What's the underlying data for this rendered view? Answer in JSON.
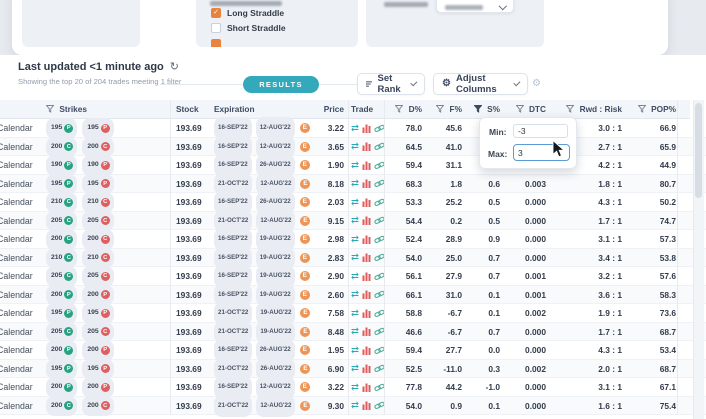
{
  "strategy_panel": {
    "items": [
      {
        "label": "Long Straddle",
        "checked": true
      },
      {
        "label": "Short Straddle",
        "checked": false
      }
    ]
  },
  "toolbar": {
    "last_updated": "Last updated <1 minute ago",
    "subtitle": "Showing the top 20 of 204 trades meeting 1 filter",
    "results": "RESULTS",
    "set_rank": "Set Rank",
    "adjust_columns": "Adjust Columns"
  },
  "filter_popup": {
    "min_label": "Min:",
    "min_value": "-3",
    "max_label": "Max:",
    "max_value": "3"
  },
  "table": {
    "headers": {
      "strikes": "Strikes",
      "stock": "Stock",
      "expiration": "Expiration",
      "price": "Price",
      "trade": "Trade",
      "d": "D%",
      "f": "F%",
      "s": "S%",
      "dtc": "DTC",
      "rr": "Rwd : Risk",
      "pop": "POP%"
    },
    "rows": [
      {
        "strategy": "Calendar",
        "legs": [
          {
            "strike": "195",
            "type": "P",
            "side": "long"
          },
          {
            "strike": "195",
            "type": "P",
            "side": "short"
          }
        ],
        "stock": "193.69",
        "exp_far": "16-SEP'22",
        "exp_near": "12-AUG'22",
        "badge": "E",
        "price": "3.22",
        "d_pct": "78.0",
        "f_pct": "45.6",
        "s_pct": null,
        "dtc": null,
        "rwd_risk": "3.0 : 1",
        "pop_pct": "66.9"
      },
      {
        "strategy": "Calendar",
        "legs": [
          {
            "strike": "200",
            "type": "C",
            "side": "long"
          },
          {
            "strike": "200",
            "type": "C",
            "side": "short"
          }
        ],
        "stock": "193.69",
        "exp_far": "16-SEP'22",
        "exp_near": "12-AUG'22",
        "badge": "E",
        "price": "3.65",
        "d_pct": "64.5",
        "f_pct": "41.0",
        "s_pct": null,
        "dtc": null,
        "rwd_risk": "2.7 : 1",
        "pop_pct": "65.9"
      },
      {
        "strategy": "Calendar",
        "legs": [
          {
            "strike": "190",
            "type": "P",
            "side": "long"
          },
          {
            "strike": "190",
            "type": "P",
            "side": "short"
          }
        ],
        "stock": "193.69",
        "exp_far": "16-SEP'22",
        "exp_near": "26-AUG'22",
        "badge": "E",
        "price": "1.90",
        "d_pct": "59.4",
        "f_pct": "31.1",
        "s_pct": null,
        "dtc": null,
        "rwd_risk": "4.2 : 1",
        "pop_pct": "44.9"
      },
      {
        "strategy": "Calendar",
        "legs": [
          {
            "strike": "195",
            "type": "P",
            "side": "long"
          },
          {
            "strike": "195",
            "type": "P",
            "side": "short"
          }
        ],
        "stock": "193.69",
        "exp_far": "21-OCT'22",
        "exp_near": "12-AUG'22",
        "badge": "E",
        "price": "8.18",
        "d_pct": "68.3",
        "f_pct": "1.8",
        "s_pct": "0.6",
        "dtc": "0.003",
        "rwd_risk": "1.8 : 1",
        "pop_pct": "80.7"
      },
      {
        "strategy": "Calendar",
        "legs": [
          {
            "strike": "210",
            "type": "C",
            "side": "long"
          },
          {
            "strike": "210",
            "type": "C",
            "side": "short"
          }
        ],
        "stock": "193.69",
        "exp_far": "16-SEP'22",
        "exp_near": "26-AUG'22",
        "badge": "E",
        "price": "2.03",
        "d_pct": "53.3",
        "f_pct": "25.2",
        "s_pct": "0.5",
        "dtc": "0.000",
        "rwd_risk": "4.3 : 1",
        "pop_pct": "50.2"
      },
      {
        "strategy": "Calendar",
        "legs": [
          {
            "strike": "205",
            "type": "C",
            "side": "long"
          },
          {
            "strike": "205",
            "type": "C",
            "side": "short"
          }
        ],
        "stock": "193.69",
        "exp_far": "21-OCT'22",
        "exp_near": "12-AUG'22",
        "badge": "E",
        "price": "9.15",
        "d_pct": "54.4",
        "f_pct": "0.2",
        "s_pct": "0.5",
        "dtc": "0.000",
        "rwd_risk": "1.7 : 1",
        "pop_pct": "74.7"
      },
      {
        "strategy": "Calendar",
        "legs": [
          {
            "strike": "200",
            "type": "C",
            "side": "long"
          },
          {
            "strike": "200",
            "type": "C",
            "side": "short"
          }
        ],
        "stock": "193.69",
        "exp_far": "16-SEP'22",
        "exp_near": "19-AUG'22",
        "badge": "E",
        "price": "2.98",
        "d_pct": "52.4",
        "f_pct": "28.9",
        "s_pct": "0.9",
        "dtc": "0.000",
        "rwd_risk": "3.1 : 1",
        "pop_pct": "57.3"
      },
      {
        "strategy": "Calendar",
        "legs": [
          {
            "strike": "210",
            "type": "C",
            "side": "long"
          },
          {
            "strike": "210",
            "type": "C",
            "side": "short"
          }
        ],
        "stock": "193.69",
        "exp_far": "16-SEP'22",
        "exp_near": "19-AUG'22",
        "badge": "E",
        "price": "2.83",
        "d_pct": "54.0",
        "f_pct": "25.0",
        "s_pct": "0.7",
        "dtc": "0.000",
        "rwd_risk": "3.4 : 1",
        "pop_pct": "53.8"
      },
      {
        "strategy": "Calendar",
        "legs": [
          {
            "strike": "205",
            "type": "C",
            "side": "long"
          },
          {
            "strike": "205",
            "type": "C",
            "side": "short"
          }
        ],
        "stock": "193.69",
        "exp_far": "16-SEP'22",
        "exp_near": "19-AUG'22",
        "badge": "E",
        "price": "2.90",
        "d_pct": "56.1",
        "f_pct": "27.9",
        "s_pct": "0.7",
        "dtc": "0.001",
        "rwd_risk": "3.2 : 1",
        "pop_pct": "57.6"
      },
      {
        "strategy": "Calendar",
        "legs": [
          {
            "strike": "200",
            "type": "P",
            "side": "long"
          },
          {
            "strike": "200",
            "type": "P",
            "side": "short"
          }
        ],
        "stock": "193.69",
        "exp_far": "16-SEP'22",
        "exp_near": "19-AUG'22",
        "badge": "E",
        "price": "2.60",
        "d_pct": "66.1",
        "f_pct": "31.0",
        "s_pct": "0.1",
        "dtc": "0.001",
        "rwd_risk": "3.6 : 1",
        "pop_pct": "58.3"
      },
      {
        "strategy": "Calendar",
        "legs": [
          {
            "strike": "195",
            "type": "P",
            "side": "long"
          },
          {
            "strike": "195",
            "type": "P",
            "side": "short"
          }
        ],
        "stock": "193.69",
        "exp_far": "21-OCT'22",
        "exp_near": "19-AUG'22",
        "badge": "E",
        "price": "7.58",
        "d_pct": "58.8",
        "f_pct": "-6.7",
        "s_pct": "0.1",
        "dtc": "0.002",
        "rwd_risk": "1.9 : 1",
        "pop_pct": "73.6"
      },
      {
        "strategy": "Calendar",
        "legs": [
          {
            "strike": "205",
            "type": "C",
            "side": "long"
          },
          {
            "strike": "205",
            "type": "C",
            "side": "short"
          }
        ],
        "stock": "193.69",
        "exp_far": "21-OCT'22",
        "exp_near": "19-AUG'22",
        "badge": "E",
        "price": "8.48",
        "d_pct": "46.6",
        "f_pct": "-6.7",
        "s_pct": "0.7",
        "dtc": "0.000",
        "rwd_risk": "1.7 : 1",
        "pop_pct": "68.7"
      },
      {
        "strategy": "Calendar",
        "legs": [
          {
            "strike": "200",
            "type": "P",
            "side": "long"
          },
          {
            "strike": "200",
            "type": "P",
            "side": "short"
          }
        ],
        "stock": "193.69",
        "exp_far": "16-SEP'22",
        "exp_near": "26-AUG'22",
        "badge": "E",
        "price": "1.95",
        "d_pct": "59.4",
        "f_pct": "27.7",
        "s_pct": "0.0",
        "dtc": "0.000",
        "rwd_risk": "4.3 : 1",
        "pop_pct": "53.4"
      },
      {
        "strategy": "Calendar",
        "legs": [
          {
            "strike": "195",
            "type": "P",
            "side": "long"
          },
          {
            "strike": "195",
            "type": "P",
            "side": "short"
          }
        ],
        "stock": "193.69",
        "exp_far": "21-OCT'22",
        "exp_near": "26-AUG'22",
        "badge": "E",
        "price": "6.90",
        "d_pct": "52.5",
        "f_pct": "-11.0",
        "s_pct": "0.3",
        "dtc": "0.002",
        "rwd_risk": "2.0 : 1",
        "pop_pct": "68.7"
      },
      {
        "strategy": "Calendar",
        "legs": [
          {
            "strike": "200",
            "type": "P",
            "side": "long"
          },
          {
            "strike": "200",
            "type": "P",
            "side": "short"
          }
        ],
        "stock": "193.69",
        "exp_far": "16-SEP'22",
        "exp_near": "12-AUG'22",
        "badge": "E",
        "price": "3.22",
        "d_pct": "77.8",
        "f_pct": "44.2",
        "s_pct": "-1.0",
        "dtc": "0.000",
        "rwd_risk": "3.1 : 1",
        "pop_pct": "67.1"
      },
      {
        "strategy": "Calendar",
        "legs": [
          {
            "strike": "200",
            "type": "C",
            "side": "long"
          },
          {
            "strike": "200",
            "type": "C",
            "side": "short"
          }
        ],
        "stock": "193.69",
        "exp_far": "21-OCT'22",
        "exp_near": "12-AUG'22",
        "badge": "E",
        "price": "9.30",
        "d_pct": "54.0",
        "f_pct": "0.9",
        "s_pct": "0.1",
        "dtc": "0.000",
        "rwd_risk": "1.6 : 1",
        "pop_pct": "75.4"
      }
    ]
  },
  "colors": {
    "accent_teal": "#33a9bb",
    "long_green": "#27a383",
    "short_red": "#dd5f5f",
    "badge_orange": "#ed9556",
    "checkbox_orange": "#e8823c",
    "focus_blue": "#5b9bd5"
  }
}
